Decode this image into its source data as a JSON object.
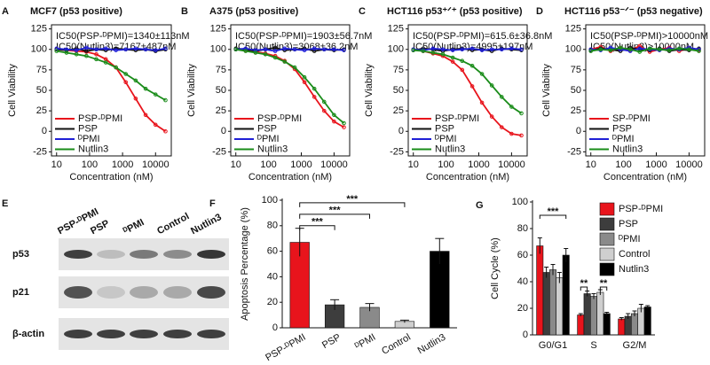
{
  "chart_data": [
    {
      "type": "line",
      "panel": "A",
      "title": "MCF7 (p53 positive)",
      "annotations": [
        "IC50(PSP-ᴰPMI)=1340±113nM",
        "IC50(Nutlin3)=7167±487nM"
      ],
      "xlabel": "Concentration (nM)",
      "ylabel": "Cell Viability",
      "xscale": "log",
      "xlim": [
        7,
        30000
      ],
      "xticks": [
        10,
        100,
        1000,
        10000
      ],
      "ylim": [
        -30,
        130
      ],
      "yticks": [
        -25,
        0,
        25,
        50,
        75,
        100,
        125
      ],
      "x": [
        10,
        20,
        40,
        80,
        160,
        310,
        630,
        1250,
        2500,
        5000,
        10000,
        20000
      ],
      "series": [
        {
          "name": "PSP-ᴰPMI",
          "color": "#e8141c",
          "values": [
            100,
            99,
            98,
            97,
            94,
            88,
            78,
            60,
            40,
            20,
            8,
            0
          ]
        },
        {
          "name": "PSP",
          "color": "#111111",
          "values": [
            100,
            99,
            101,
            98,
            100,
            99,
            101,
            100,
            99,
            100,
            98,
            100
          ]
        },
        {
          "name": "ᴰPMI",
          "color": "#1f1fd6",
          "values": [
            101,
            100,
            99,
            102,
            100,
            101,
            99,
            100,
            101,
            100,
            99,
            101
          ]
        },
        {
          "name": "Nutlin3",
          "color": "#1a8c1a",
          "values": [
            98,
            96,
            94,
            92,
            88,
            84,
            78,
            70,
            62,
            52,
            45,
            38
          ]
        }
      ]
    },
    {
      "type": "line",
      "panel": "B",
      "title": "A375 (p53 positive)",
      "annotations": [
        "IC50(PSP-ᴰPMI)=1903±56.7nM",
        "IC50(Nutlin3)=3068±36.2nM"
      ],
      "xlabel": "Concentration (nM)",
      "ylabel": "Cell Viability",
      "xscale": "log",
      "xlim": [
        7,
        30000
      ],
      "xticks": [
        10,
        100,
        1000,
        10000
      ],
      "ylim": [
        -30,
        130
      ],
      "yticks": [
        -25,
        0,
        25,
        50,
        75,
        100,
        125
      ],
      "x": [
        10,
        20,
        40,
        80,
        160,
        310,
        630,
        1250,
        2500,
        5000,
        10000,
        20000
      ],
      "series": [
        {
          "name": "PSP-ᴰPMI",
          "color": "#e8141c",
          "values": [
            100,
            99,
            97,
            95,
            92,
            86,
            76,
            60,
            42,
            25,
            12,
            5
          ]
        },
        {
          "name": "PSP",
          "color": "#111111",
          "values": [
            101,
            100,
            98,
            100,
            102,
            99,
            100,
            101,
            98,
            100,
            99,
            100
          ]
        },
        {
          "name": "ᴰPMI",
          "color": "#1f1fd6",
          "values": [
            100,
            101,
            99,
            100,
            98,
            101,
            100,
            99,
            101,
            100,
            100,
            99
          ]
        },
        {
          "name": "Nutlin3",
          "color": "#1a8c1a",
          "values": [
            100,
            98,
            96,
            94,
            90,
            85,
            78,
            66,
            52,
            36,
            20,
            10
          ]
        }
      ]
    },
    {
      "type": "line",
      "panel": "C",
      "title": "HCT116 p53⁺ᐟ⁺ (p53 positive)",
      "annotations": [
        "IC50(PSP-ᴰPMI)=615.6±36.8nM",
        "IC50(Nutlin3)=4995±197nM"
      ],
      "xlabel": "Concentration (nM)",
      "ylabel": "Cell Viability",
      "xscale": "log",
      "xlim": [
        7,
        30000
      ],
      "xticks": [
        10,
        100,
        1000,
        10000
      ],
      "ylim": [
        -30,
        130
      ],
      "yticks": [
        -25,
        0,
        25,
        50,
        75,
        100,
        125
      ],
      "x": [
        10,
        20,
        40,
        80,
        160,
        310,
        630,
        1250,
        2500,
        5000,
        10000,
        20000
      ],
      "series": [
        {
          "name": "PSP-ᴰPMI",
          "color": "#e8141c",
          "values": [
            100,
            98,
            95,
            92,
            85,
            75,
            55,
            35,
            18,
            5,
            -3,
            -5
          ]
        },
        {
          "name": "PSP",
          "color": "#111111",
          "values": [
            99,
            101,
            100,
            98,
            100,
            101,
            99,
            100,
            98,
            101,
            100,
            99
          ]
        },
        {
          "name": "ᴰPMI",
          "color": "#1f1fd6",
          "values": [
            100,
            99,
            101,
            100,
            99,
            100,
            101,
            99,
            100,
            100,
            101,
            100
          ]
        },
        {
          "name": "Nutlin3",
          "color": "#1a8c1a",
          "values": [
            99,
            98,
            96,
            94,
            90,
            86,
            80,
            70,
            56,
            42,
            30,
            22
          ]
        }
      ]
    },
    {
      "type": "line",
      "panel": "D",
      "title": "HCT116 p53⁻ᐟ⁻ (p53 negative)",
      "annotations": [
        "IC50(PSP-ᴰPMI)>10000nM",
        "IC50(Nutlin3)>10000nM"
      ],
      "xlabel": "Concentration (nM)",
      "ylabel": "Cell Viability",
      "xscale": "log",
      "xlim": [
        7,
        30000
      ],
      "xticks": [
        10,
        100,
        1000,
        10000
      ],
      "ylim": [
        -30,
        130
      ],
      "yticks": [
        -25,
        0,
        25,
        50,
        75,
        100,
        125
      ],
      "x": [
        10,
        20,
        40,
        80,
        160,
        310,
        630,
        1250,
        2500,
        5000,
        10000,
        20000
      ],
      "series": [
        {
          "name": "SP-ᴰPMI",
          "color": "#e8141c",
          "values": [
            100,
            103,
            98,
            101,
            99,
            104,
            97,
            100,
            102,
            98,
            101,
            99
          ]
        },
        {
          "name": "PSP",
          "color": "#111111",
          "values": [
            99,
            101,
            100,
            98,
            102,
            100,
            99,
            101,
            98,
            100,
            99,
            101
          ]
        },
        {
          "name": "ᴰPMI",
          "color": "#1f1fd6",
          "values": [
            100,
            99,
            102,
            100,
            98,
            101,
            100,
            99,
            101,
            100,
            102,
            100
          ]
        },
        {
          "name": "Nutlin3",
          "color": "#1a8c1a",
          "values": [
            98,
            100,
            99,
            102,
            100,
            97,
            101,
            100,
            99,
            101,
            100,
            98
          ]
        }
      ]
    },
    {
      "type": "bar",
      "panel": "F",
      "ylabel": "Apoptosis Percentage (%)",
      "ylim": [
        0,
        100
      ],
      "yticks": [
        0,
        20,
        40,
        60,
        80,
        100
      ],
      "categories": [
        "PSP-ᴰPMI",
        "PSP",
        "ᴰPMI",
        "Control",
        "Nutlin3"
      ],
      "values": [
        67,
        18,
        16,
        5,
        60
      ],
      "errors": [
        11,
        4,
        3,
        1,
        10
      ],
      "colors": [
        "#e8141c",
        "#3d3d3d",
        "#8a8a8a",
        "#cfcfcf",
        "#000000"
      ],
      "annotations": [
        "***",
        "***",
        "***"
      ]
    },
    {
      "type": "bar",
      "panel": "G",
      "ylabel": "Cell Cycle (%)",
      "ylim": [
        0,
        100
      ],
      "yticks": [
        0,
        20,
        40,
        60,
        80,
        100
      ],
      "categories": [
        "G0/G1",
        "S",
        "G2/M"
      ],
      "annotations": [
        "***",
        "**",
        "**"
      ],
      "series": [
        {
          "name": "PSP-ᴰPMI",
          "color": "#e8141c",
          "values": [
            67,
            15,
            12
          ],
          "errors": [
            6,
            1,
            1
          ]
        },
        {
          "name": "PSP",
          "color": "#3d3d3d",
          "values": [
            47,
            31,
            14
          ],
          "errors": [
            4,
            2,
            2
          ]
        },
        {
          "name": "ᴰPMI",
          "color": "#8a8a8a",
          "values": [
            49,
            29,
            16
          ],
          "errors": [
            4,
            2,
            2
          ]
        },
        {
          "name": "Control",
          "color": "#cfcfcf",
          "values": [
            43,
            32,
            20
          ],
          "errors": [
            4,
            2,
            3
          ]
        },
        {
          "name": "Nutlin3",
          "color": "#000000",
          "values": [
            60,
            16,
            21
          ],
          "errors": [
            5,
            1,
            1
          ]
        }
      ]
    }
  ],
  "blot": {
    "panel": "E",
    "lanes": [
      "PSP-ᴰPMI",
      "PSP",
      "ᴰPMI",
      "Control",
      "Nutlin3"
    ],
    "proteins": [
      "p53",
      "p21",
      "β-actin"
    ]
  }
}
